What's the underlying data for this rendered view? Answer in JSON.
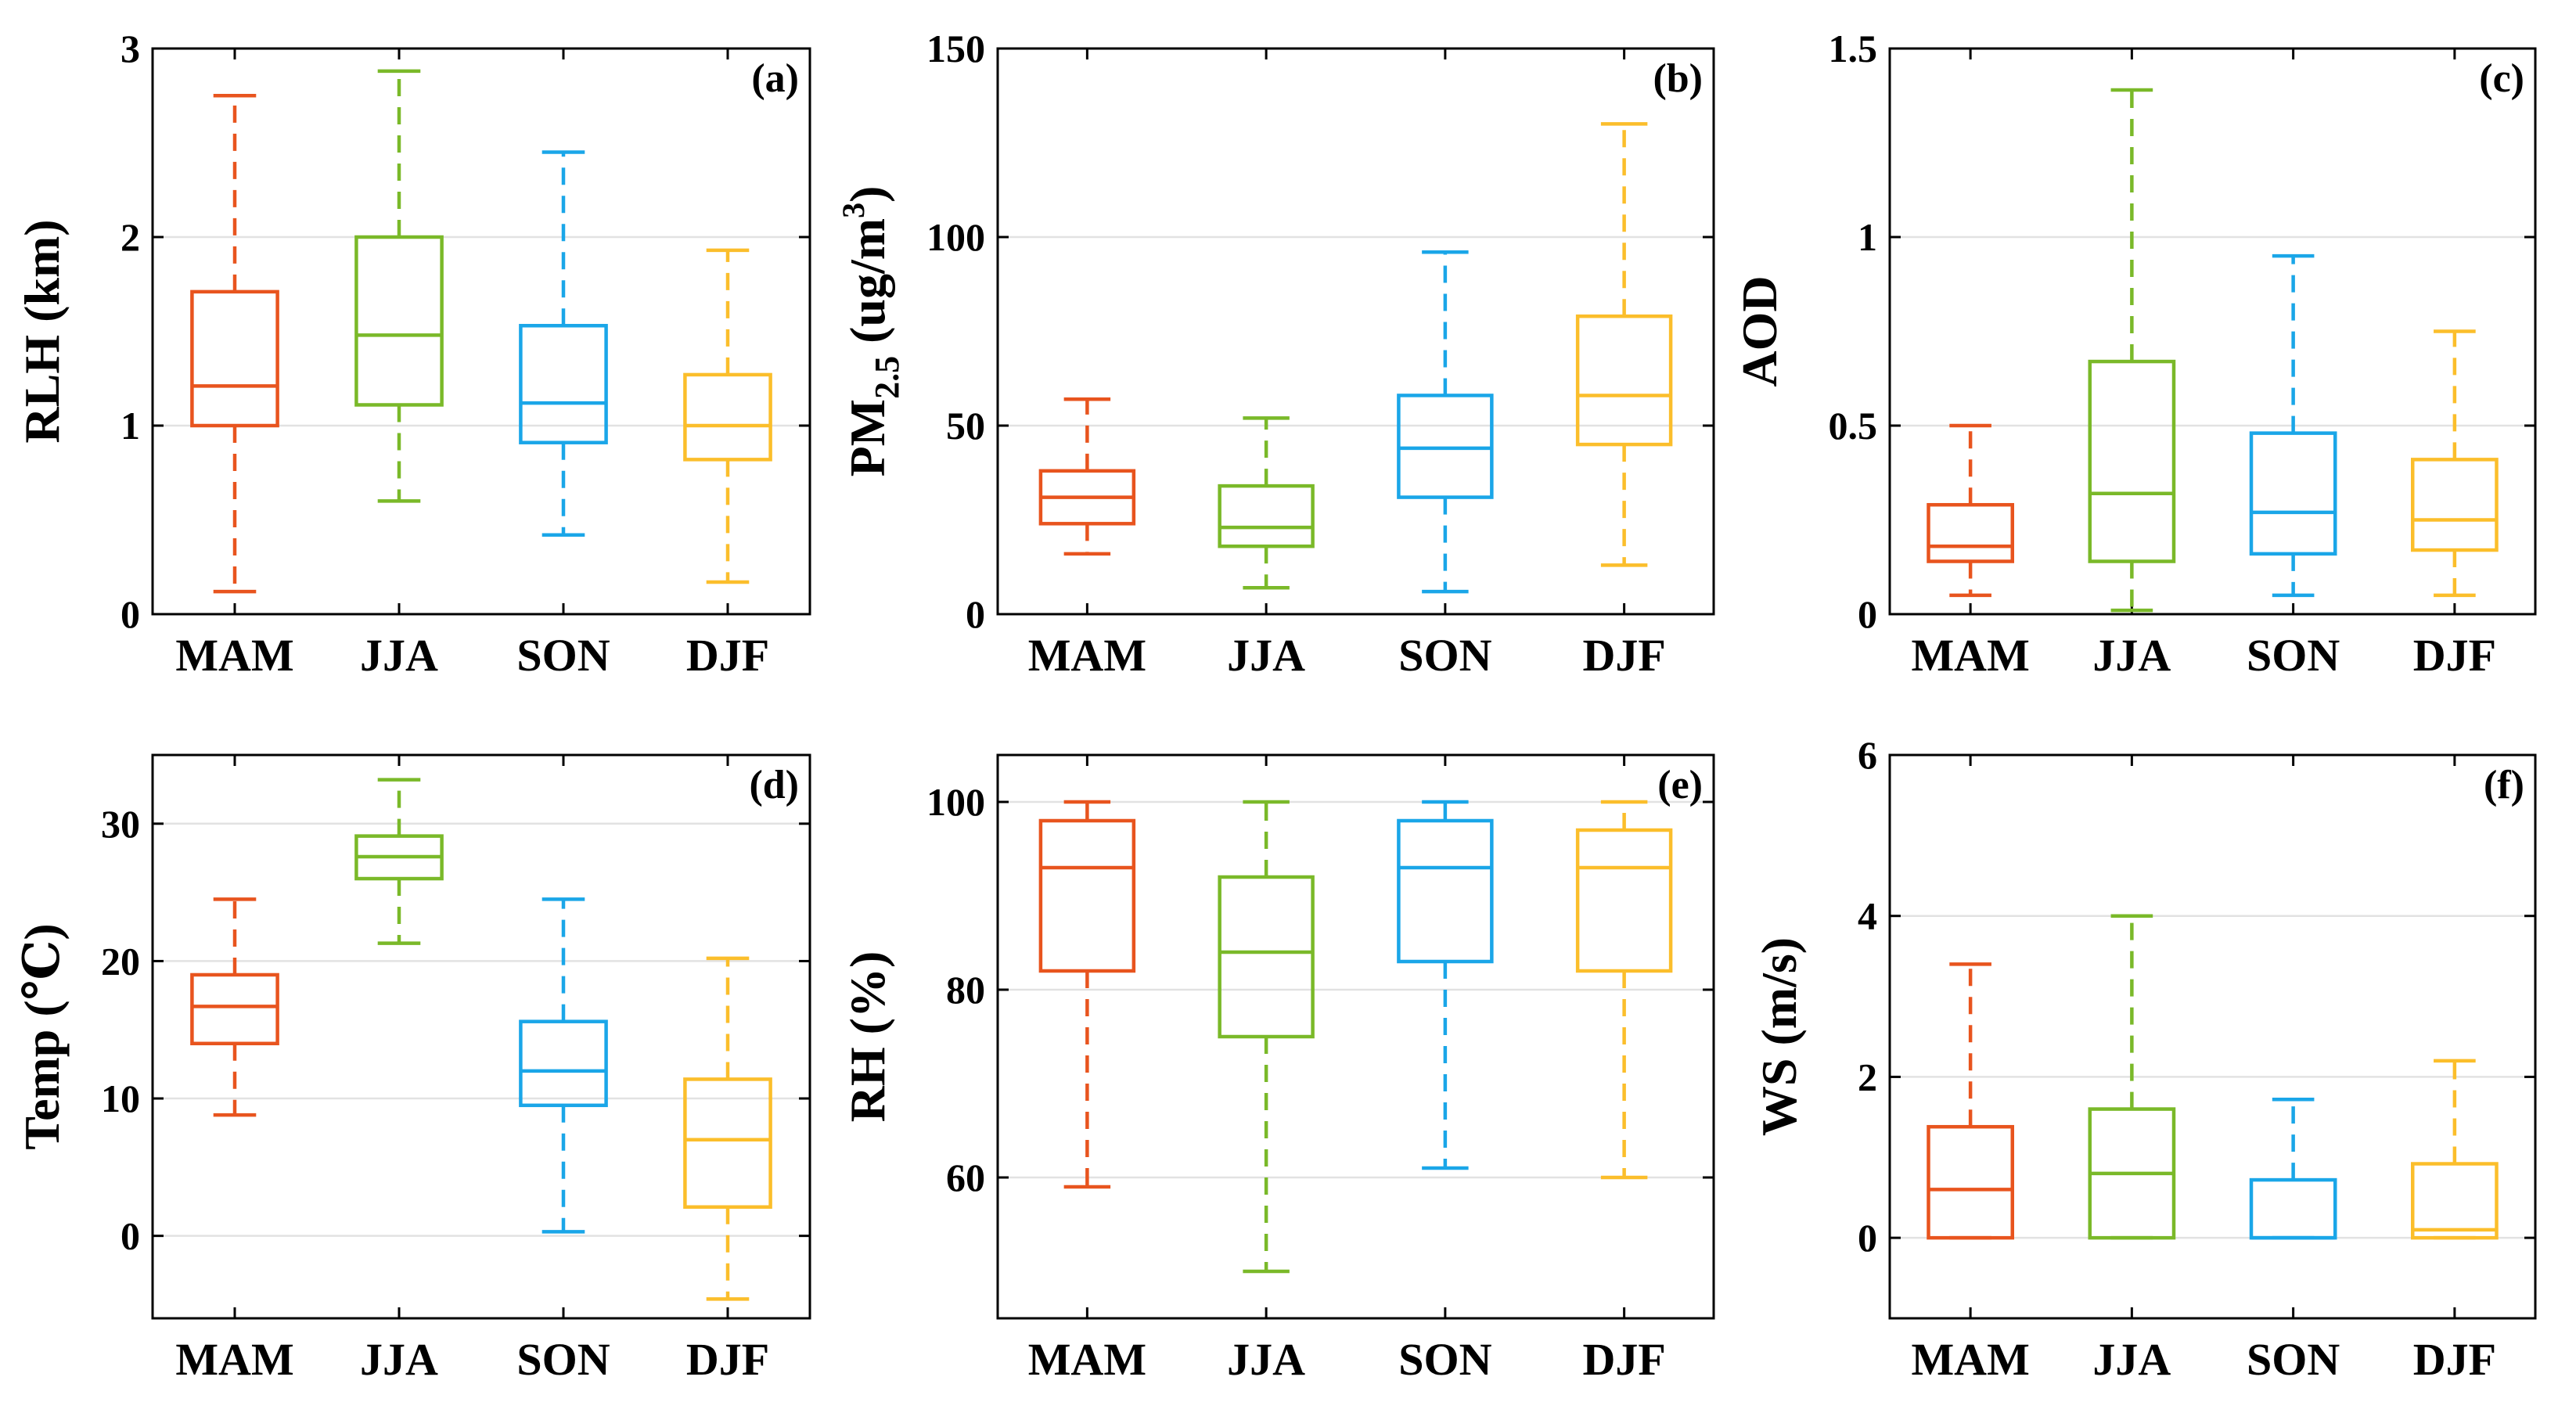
{
  "chart_data": [
    {
      "type": "boxplot",
      "panel_label": "(a)",
      "ylabel": "RLH (km)",
      "ylabel_main": "RLH (km)",
      "ylim": [
        0,
        3
      ],
      "yticks": [
        0,
        1,
        2,
        3
      ],
      "ytick_labels": [
        "0",
        "1",
        "2",
        "3"
      ],
      "categories": [
        "MAM",
        "JJA",
        "SON",
        "DJF"
      ],
      "boxes": [
        {
          "category": "MAM",
          "whisker_low": 0.12,
          "q1": 1.0,
          "median": 1.21,
          "q3": 1.71,
          "whisker_high": 2.75
        },
        {
          "category": "JJA",
          "whisker_low": 0.6,
          "q1": 1.11,
          "median": 1.48,
          "q3": 2.0,
          "whisker_high": 2.88
        },
        {
          "category": "SON",
          "whisker_low": 0.42,
          "q1": 0.91,
          "median": 1.12,
          "q3": 1.53,
          "whisker_high": 2.45
        },
        {
          "category": "DJF",
          "whisker_low": 0.17,
          "q1": 0.82,
          "median": 1.0,
          "q3": 1.27,
          "whisker_high": 1.93
        }
      ]
    },
    {
      "type": "boxplot",
      "panel_label": "(b)",
      "ylabel": "PM2.5 (ug/m3)",
      "ylabel_main": "PM",
      "ylabel_sub": "2.5",
      "ylabel_mid": " (ug/m",
      "ylabel_sup": "3",
      "ylabel_end": ")",
      "ylim": [
        0,
        150
      ],
      "yticks": [
        0,
        50,
        100,
        150
      ],
      "ytick_labels": [
        "0",
        "50",
        "100",
        "150"
      ],
      "categories": [
        "MAM",
        "JJA",
        "SON",
        "DJF"
      ],
      "boxes": [
        {
          "category": "MAM",
          "whisker_low": 16,
          "q1": 24,
          "median": 31,
          "q3": 38,
          "whisker_high": 57
        },
        {
          "category": "JJA",
          "whisker_low": 7,
          "q1": 18,
          "median": 23,
          "q3": 34,
          "whisker_high": 52
        },
        {
          "category": "SON",
          "whisker_low": 6,
          "q1": 31,
          "median": 44,
          "q3": 58,
          "whisker_high": 96
        },
        {
          "category": "DJF",
          "whisker_low": 13,
          "q1": 45,
          "median": 58,
          "q3": 79,
          "whisker_high": 130
        }
      ]
    },
    {
      "type": "boxplot",
      "panel_label": "(c)",
      "ylabel": "AOD",
      "ylabel_main": "AOD",
      "ylim": [
        0,
        1.5
      ],
      "yticks": [
        0,
        0.5,
        1,
        1.5
      ],
      "ytick_labels": [
        "0",
        "0.5",
        "1",
        "1.5"
      ],
      "categories": [
        "MAM",
        "JJA",
        "SON",
        "DJF"
      ],
      "boxes": [
        {
          "category": "MAM",
          "whisker_low": 0.05,
          "q1": 0.14,
          "median": 0.18,
          "q3": 0.29,
          "whisker_high": 0.5
        },
        {
          "category": "JJA",
          "whisker_low": 0.01,
          "q1": 0.14,
          "median": 0.32,
          "q3": 0.67,
          "whisker_high": 1.39
        },
        {
          "category": "SON",
          "whisker_low": 0.05,
          "q1": 0.16,
          "median": 0.27,
          "q3": 0.48,
          "whisker_high": 0.95
        },
        {
          "category": "DJF",
          "whisker_low": 0.05,
          "q1": 0.17,
          "median": 0.25,
          "q3": 0.41,
          "whisker_high": 0.75
        }
      ]
    },
    {
      "type": "boxplot",
      "panel_label": "(d)",
      "ylabel": "Temp (℃)",
      "ylabel_main": "Temp (℃)",
      "ylim": [
        -6,
        35
      ],
      "yticks": [
        0,
        10,
        20,
        30
      ],
      "ytick_labels": [
        "0",
        "10",
        "20",
        "30"
      ],
      "categories": [
        "MAM",
        "JJA",
        "SON",
        "DJF"
      ],
      "boxes": [
        {
          "category": "MAM",
          "whisker_low": 8.8,
          "q1": 14,
          "median": 16.7,
          "q3": 19,
          "whisker_high": 24.5
        },
        {
          "category": "JJA",
          "whisker_low": 21.3,
          "q1": 26,
          "median": 27.6,
          "q3": 29.1,
          "whisker_high": 33.2
        },
        {
          "category": "SON",
          "whisker_low": 0.3,
          "q1": 9.5,
          "median": 12,
          "q3": 15.6,
          "whisker_high": 24.5
        },
        {
          "category": "DJF",
          "whisker_low": -4.6,
          "q1": 2.1,
          "median": 7,
          "q3": 11.4,
          "whisker_high": 20.2
        }
      ]
    },
    {
      "type": "boxplot",
      "panel_label": "(e)",
      "ylabel": "RH (%)",
      "ylabel_main": "RH (%)",
      "ylim": [
        45,
        105
      ],
      "yticks": [
        60,
        80,
        100
      ],
      "ytick_labels": [
        "60",
        "80",
        "100"
      ],
      "categories": [
        "MAM",
        "JJA",
        "SON",
        "DJF"
      ],
      "boxes": [
        {
          "category": "MAM",
          "whisker_low": 59,
          "q1": 82,
          "median": 93,
          "q3": 98,
          "whisker_high": 100
        },
        {
          "category": "JJA",
          "whisker_low": 50,
          "q1": 75,
          "median": 84,
          "q3": 92,
          "whisker_high": 100
        },
        {
          "category": "SON",
          "whisker_low": 61,
          "q1": 83,
          "median": 93,
          "q3": 98,
          "whisker_high": 100
        },
        {
          "category": "DJF",
          "whisker_low": 60,
          "q1": 82,
          "median": 93,
          "q3": 97,
          "whisker_high": 100
        }
      ]
    },
    {
      "type": "boxplot",
      "panel_label": "(f)",
      "ylabel": "WS (m/s)",
      "ylabel_main": "WS (m/s)",
      "ylim": [
        -1,
        6
      ],
      "yticks": [
        0,
        2,
        4,
        6
      ],
      "ytick_labels": [
        "0",
        "2",
        "4",
        "6"
      ],
      "categories": [
        "MAM",
        "JJA",
        "SON",
        "DJF"
      ],
      "boxes": [
        {
          "category": "MAM",
          "whisker_low": 0,
          "q1": 0,
          "median": 0.6,
          "q3": 1.38,
          "whisker_high": 3.4
        },
        {
          "category": "JJA",
          "whisker_low": 0,
          "q1": 0,
          "median": 0.8,
          "q3": 1.6,
          "whisker_high": 4.0
        },
        {
          "category": "SON",
          "whisker_low": 0,
          "q1": 0,
          "median": 0,
          "q3": 0.72,
          "whisker_high": 1.72
        },
        {
          "category": "DJF",
          "whisker_low": 0,
          "q1": 0,
          "median": 0.1,
          "q3": 0.92,
          "whisker_high": 2.2
        }
      ]
    }
  ],
  "colors": {
    "MAM": "#e8541e",
    "JJA": "#7ab929",
    "SON": "#1aa6e8",
    "DJF": "#fbbe2b",
    "grid": "#e2e2e2",
    "axis": "#000000"
  }
}
